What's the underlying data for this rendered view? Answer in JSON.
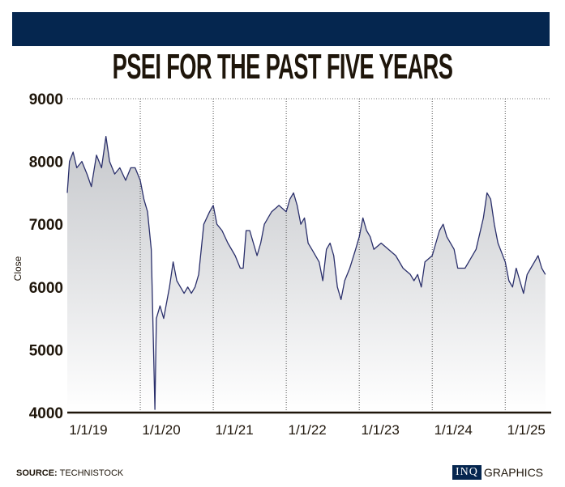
{
  "chart_data": {
    "type": "area",
    "title": "PSEI FOR THE PAST FIVE YEARS",
    "xlabel": "",
    "ylabel": "Close",
    "ylim": [
      4000,
      9000
    ],
    "xlim": [
      2019.0,
      2025.63
    ],
    "yticks": [
      {
        "v": 9000,
        "label": "9000"
      },
      {
        "v": 8000,
        "label": "8000"
      },
      {
        "v": 7000,
        "label": "7000"
      },
      {
        "v": 6000,
        "label": "6000"
      },
      {
        "v": 5000,
        "label": "5000"
      },
      {
        "v": 4000,
        "label": "4000"
      }
    ],
    "xticks": [
      {
        "v": 2019.0,
        "label": "1/1/19"
      },
      {
        "v": 2020.0,
        "label": "1/1/20"
      },
      {
        "v": 2021.0,
        "label": "1/1/21"
      },
      {
        "v": 2022.0,
        "label": "1/1/22"
      },
      {
        "v": 2023.0,
        "label": "1/1/23"
      },
      {
        "v": 2024.0,
        "label": "1/1/24"
      },
      {
        "v": 2025.0,
        "label": "1/1/25"
      }
    ],
    "series": [
      {
        "name": "Close",
        "color": "#2a2f6b",
        "x": [
          2019.0,
          2019.03,
          2019.08,
          2019.13,
          2019.2,
          2019.27,
          2019.33,
          2019.4,
          2019.47,
          2019.53,
          2019.58,
          2019.65,
          2019.72,
          2019.8,
          2019.87,
          2019.93,
          2020.0,
          2020.05,
          2020.1,
          2020.15,
          2020.2,
          2020.22,
          2020.27,
          2020.32,
          2020.4,
          2020.45,
          2020.5,
          2020.55,
          2020.6,
          2020.65,
          2020.7,
          2020.75,
          2020.8,
          2020.87,
          2020.95,
          2021.0,
          2021.05,
          2021.12,
          2021.2,
          2021.3,
          2021.37,
          2021.41,
          2021.45,
          2021.5,
          2021.55,
          2021.6,
          2021.65,
          2021.7,
          2021.8,
          2021.9,
          2022.0,
          2022.05,
          2022.1,
          2022.15,
          2022.2,
          2022.25,
          2022.3,
          2022.35,
          2022.45,
          2022.5,
          2022.55,
          2022.6,
          2022.65,
          2022.7,
          2022.75,
          2022.8,
          2022.87,
          2022.95,
          2023.0,
          2023.05,
          2023.1,
          2023.15,
          2023.2,
          2023.3,
          2023.4,
          2023.5,
          2023.6,
          2023.7,
          2023.75,
          2023.8,
          2023.85,
          2023.9,
          2024.0,
          2024.05,
          2024.1,
          2024.15,
          2024.2,
          2024.3,
          2024.35,
          2024.45,
          2024.5,
          2024.6,
          2024.7,
          2024.75,
          2024.8,
          2024.85,
          2024.9,
          2025.0,
          2025.05,
          2025.1,
          2025.15,
          2025.2,
          2025.25,
          2025.3,
          2025.35,
          2025.4,
          2025.45,
          2025.5,
          2025.55
        ],
        "y": [
          7500,
          8000,
          8150,
          7900,
          8000,
          7800,
          7600,
          8100,
          7900,
          8400,
          8000,
          7800,
          7900,
          7700,
          7900,
          7900,
          7700,
          7400,
          7200,
          6600,
          4050,
          5500,
          5700,
          5500,
          6000,
          6400,
          6100,
          6000,
          5900,
          6000,
          5900,
          6000,
          6200,
          7000,
          7200,
          7300,
          7000,
          6900,
          6700,
          6500,
          6300,
          6300,
          6900,
          6900,
          6700,
          6500,
          6700,
          7000,
          7200,
          7300,
          7200,
          7400,
          7500,
          7300,
          7000,
          7100,
          6700,
          6600,
          6400,
          6100,
          6600,
          6700,
          6500,
          6000,
          5800,
          6100,
          6300,
          6600,
          6800,
          7100,
          6900,
          6800,
          6600,
          6700,
          6600,
          6500,
          6300,
          6200,
          6100,
          6200,
          6000,
          6400,
          6500,
          6700,
          6900,
          7000,
          6800,
          6600,
          6300,
          6300,
          6400,
          6600,
          7100,
          7500,
          7400,
          7000,
          6700,
          6400,
          6100,
          6000,
          6300,
          6100,
          5900,
          6200,
          6300,
          6400,
          6500,
          6300,
          6200
        ]
      }
    ]
  },
  "source_label": "SOURCE:",
  "source_value": "TECHNISTOCK",
  "logo_inq": "INQ",
  "logo_graphics": "GRAPHICS"
}
